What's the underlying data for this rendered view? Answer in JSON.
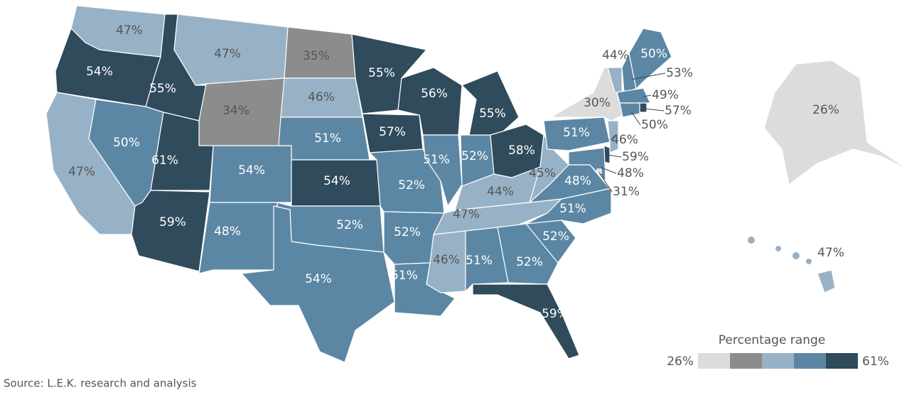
{
  "chart_data": {
    "type": "choropleth",
    "values": [
      47,
      54,
      47,
      50,
      55,
      47,
      34,
      61,
      59,
      54,
      48,
      35,
      46,
      51,
      54,
      52,
      54,
      55,
      57,
      52,
      52,
      51,
      56,
      51,
      55,
      52,
      58,
      44,
      47,
      46,
      51,
      52,
      59,
      52,
      51,
      48,
      45,
      51,
      30,
      44,
      53,
      50,
      49,
      57,
      50,
      46,
      59,
      48,
      31,
      26,
      47
    ],
    "value_labels": [
      "47%",
      "54%",
      "47%",
      "50%",
      "55%",
      "47%",
      "34%",
      "61%",
      "59%",
      "54%",
      "48%",
      "35%",
      "46%",
      "51%",
      "54%",
      "52%",
      "54%",
      "55%",
      "57%",
      "52%",
      "52%",
      "51%",
      "56%",
      "51%",
      "55%",
      "52%",
      "58%",
      "44%",
      "47%",
      "46%",
      "51%",
      "52%",
      "59%",
      "52%",
      "51%",
      "48%",
      "45%",
      "51%",
      "30%",
      "44%",
      "53%",
      "50%",
      "49%",
      "57%",
      "50%",
      "46%",
      "59%",
      "48%",
      "31%",
      "26%",
      "47%"
    ],
    "colors": [
      "#97b2c6",
      "#2f4b5c",
      "#97b2c6",
      "#5b87a4",
      "#2f4b5c",
      "#97b2c6",
      "#8c8c8c",
      "#2f4b5c",
      "#2f4b5c",
      "#5b87a4",
      "#5b87a4",
      "#8c8c8c",
      "#97b2c6",
      "#5b87a4",
      "#2f4b5c",
      "#5b87a4",
      "#5b87a4",
      "#2f4b5c",
      "#2f4b5c",
      "#5b87a4",
      "#5b87a4",
      "#5b87a4",
      "#2f4b5c",
      "#5b87a4",
      "#2f4b5c",
      "#5b87a4",
      "#2f4b5c",
      "#97b2c6",
      "#97b2c6",
      "#97b2c6",
      "#5b87a4",
      "#5b87a4",
      "#2f4b5c",
      "#5b87a4",
      "#5b87a4",
      "#5b87a4",
      "#97b2c6",
      "#5b87a4",
      "#dcdcda",
      "#97b2c6",
      "#5b87a4",
      "#5b87a4",
      "#5b87a4",
      "#2f4b5c",
      "#5b87a4",
      "#97b2c6",
      "#2f4b5c",
      "#5b87a4",
      "#dcdcda",
      "#dcdcda",
      "#97b2c6"
    ],
    "legend": {
      "title": "Percentage range",
      "scale": [
        {
          "value": 26,
          "label": "26%"
        },
        {
          "value": 61,
          "label": "61%"
        }
      ],
      "colors": [
        "#dcdcda",
        "#8c8c8c",
        "#97b2c6",
        "#5b87a4",
        "#2f4b5c"
      ]
    },
    "source": "Source: L.E.K. research and analysis"
  }
}
